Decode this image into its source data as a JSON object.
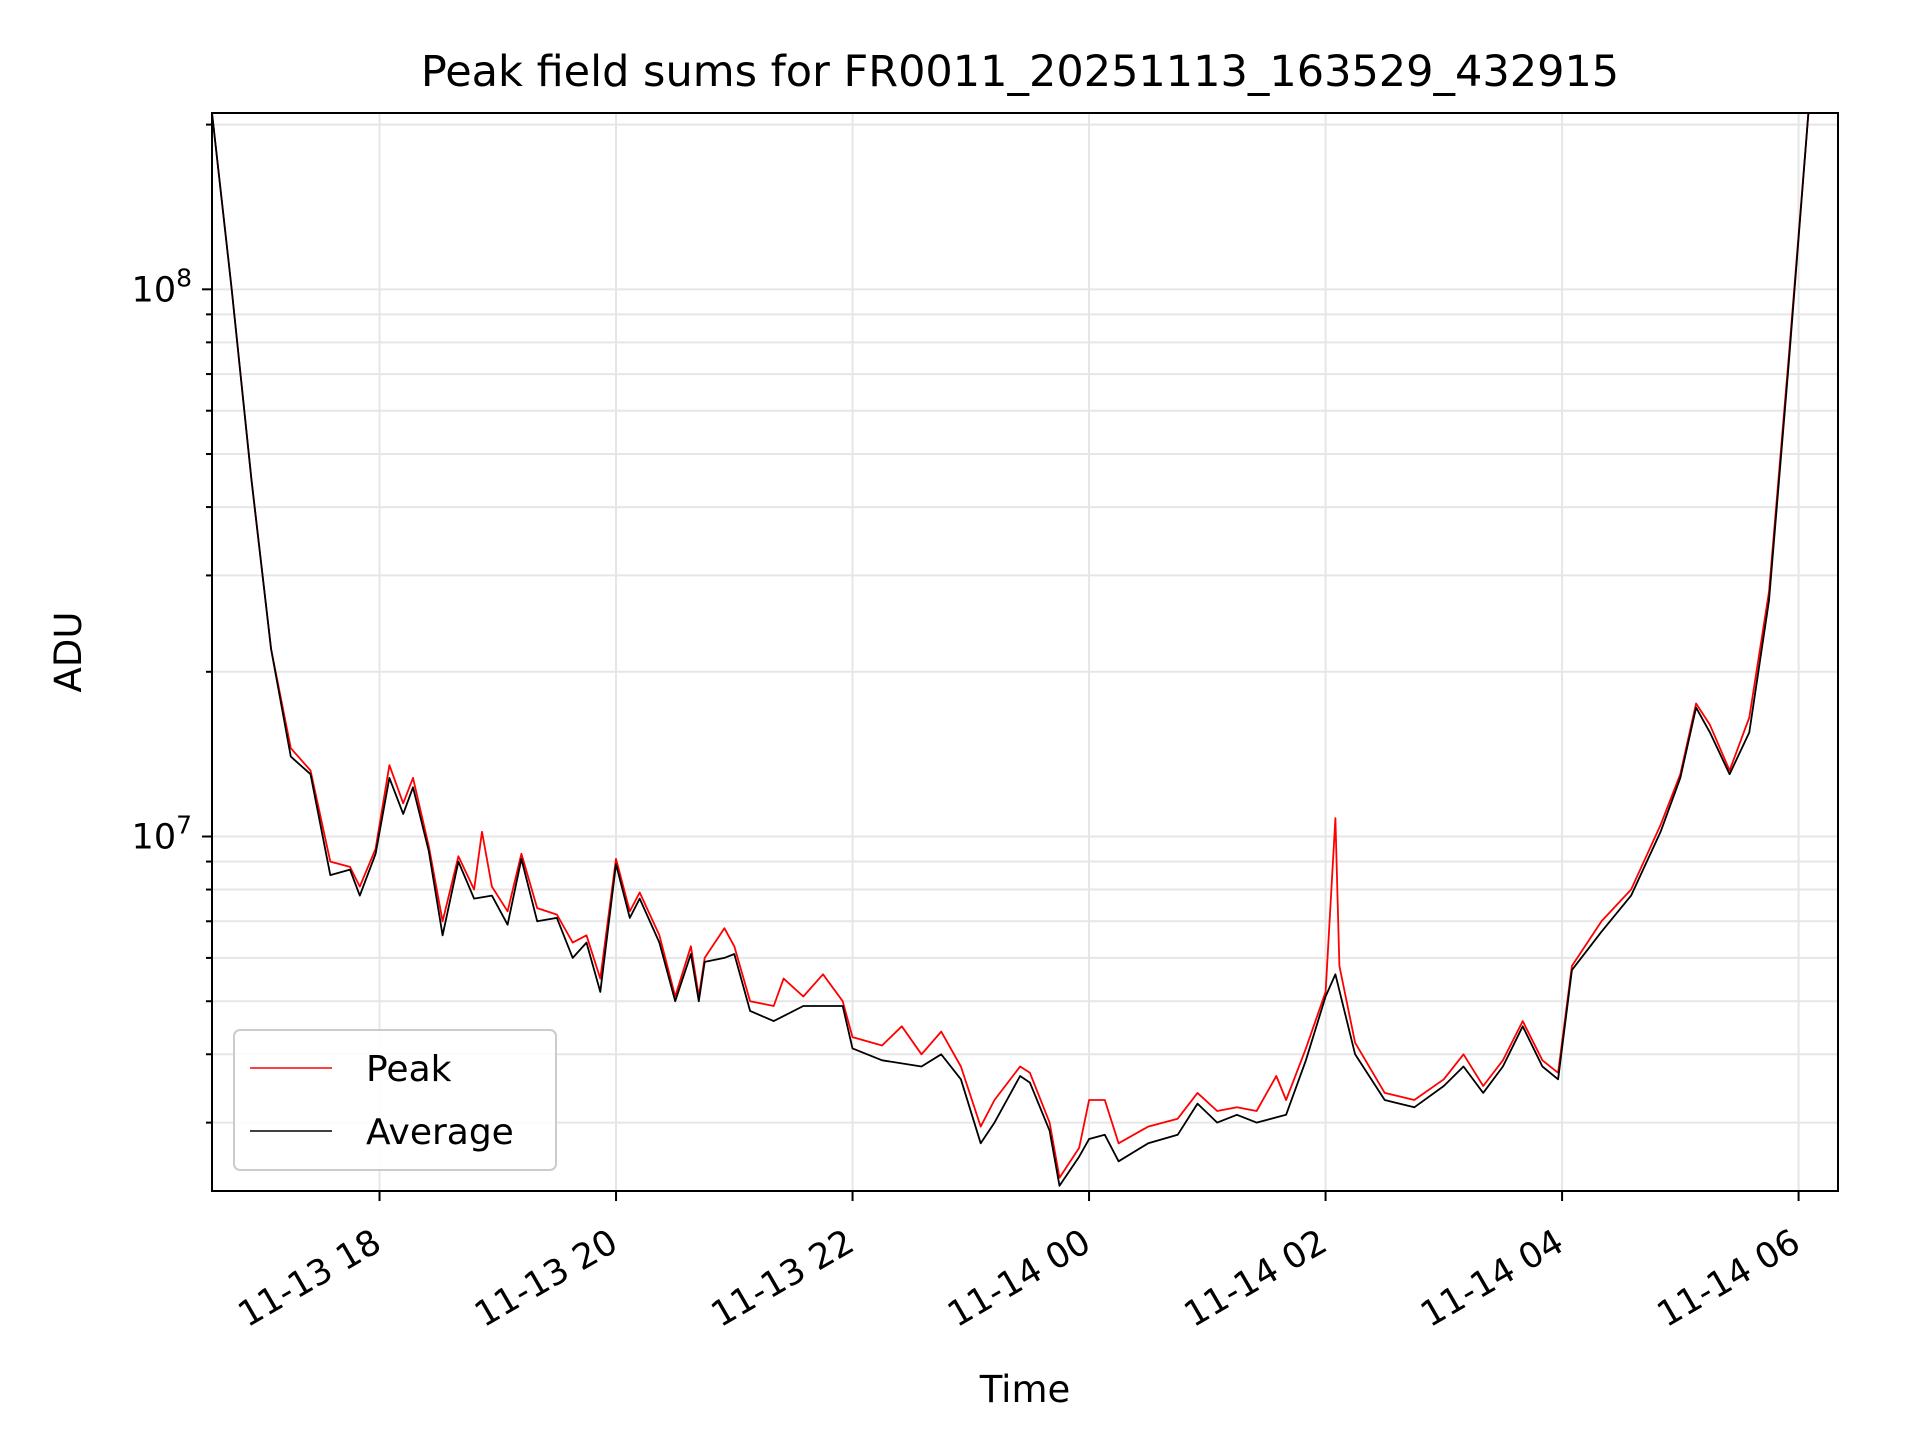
{
  "chart_data": {
    "type": "line",
    "title": "Peak field sums for FR0011_20251113_163529_432915",
    "xlabel": "Time",
    "ylabel": "ADU",
    "yscale": "log",
    "ylim": [
      2250000,
      210000000
    ],
    "xlim": [
      "2025-11-13 16:35",
      "2025-11-14 06:20"
    ],
    "grid": true,
    "legend_position": "lower-left",
    "x_ticks": [
      "2025-11-13 18:00",
      "2025-11-13 20:00",
      "2025-11-13 22:00",
      "2025-11-14 00:00",
      "2025-11-14 02:00",
      "2025-11-14 04:00",
      "2025-11-14 06:00"
    ],
    "x_tick_labels": [
      "11-13 18",
      "11-13 20",
      "11-13 22",
      "11-14 00",
      "11-14 02",
      "11-14 04",
      "11-14 06"
    ],
    "y_major_ticks": [
      10000000,
      100000000
    ],
    "y_tick_labels": [
      {
        "base": "10",
        "exp": "7"
      },
      {
        "base": "10",
        "exp": "8"
      }
    ],
    "colors": {
      "peak": "#ff0000",
      "average": "#000000",
      "grid": "#e6e6e6"
    },
    "series": [
      {
        "name": "Peak",
        "color": "#ff0000",
        "points": [
          [
            "2025-11-13 16:35",
            210000000
          ],
          [
            "2025-11-13 16:45",
            100000000
          ],
          [
            "2025-11-13 16:55",
            45000000
          ],
          [
            "2025-11-13 17:05",
            22000000
          ],
          [
            "2025-11-13 17:15",
            14500000
          ],
          [
            "2025-11-13 17:25",
            13200000
          ],
          [
            "2025-11-13 17:35",
            9000000
          ],
          [
            "2025-11-13 17:45",
            8800000
          ],
          [
            "2025-11-13 17:50",
            8100000
          ],
          [
            "2025-11-13 17:58",
            9500000
          ],
          [
            "2025-11-13 18:05",
            13500000
          ],
          [
            "2025-11-13 18:12",
            11500000
          ],
          [
            "2025-11-13 18:17",
            12800000
          ],
          [
            "2025-11-13 18:25",
            9600000
          ],
          [
            "2025-11-13 18:32",
            7000000
          ],
          [
            "2025-11-13 18:40",
            9200000
          ],
          [
            "2025-11-13 18:48",
            8000000
          ],
          [
            "2025-11-13 18:52",
            10200000
          ],
          [
            "2025-11-13 18:57",
            8100000
          ],
          [
            "2025-11-13 19:05",
            7300000
          ],
          [
            "2025-11-13 19:12",
            9300000
          ],
          [
            "2025-11-13 19:20",
            7400000
          ],
          [
            "2025-11-13 19:30",
            7200000
          ],
          [
            "2025-11-13 19:38",
            6400000
          ],
          [
            "2025-11-13 19:45",
            6600000
          ],
          [
            "2025-11-13 19:52",
            5500000
          ],
          [
            "2025-11-13 20:00",
            9100000
          ],
          [
            "2025-11-13 20:07",
            7300000
          ],
          [
            "2025-11-13 20:12",
            7900000
          ],
          [
            "2025-11-13 20:22",
            6600000
          ],
          [
            "2025-11-13 20:30",
            5100000
          ],
          [
            "2025-11-13 20:38",
            6300000
          ],
          [
            "2025-11-13 20:42",
            5100000
          ],
          [
            "2025-11-13 20:45",
            6000000
          ],
          [
            "2025-11-13 20:55",
            6800000
          ],
          [
            "2025-11-13 21:00",
            6300000
          ],
          [
            "2025-11-13 21:08",
            5000000
          ],
          [
            "2025-11-13 21:20",
            4900000
          ],
          [
            "2025-11-13 21:25",
            5500000
          ],
          [
            "2025-11-13 21:35",
            5100000
          ],
          [
            "2025-11-13 21:45",
            5600000
          ],
          [
            "2025-11-13 21:55",
            5000000
          ],
          [
            "2025-11-13 22:00",
            4300000
          ],
          [
            "2025-11-13 22:15",
            4150000
          ],
          [
            "2025-11-13 22:25",
            4500000
          ],
          [
            "2025-11-13 22:35",
            4000000
          ],
          [
            "2025-11-13 22:45",
            4400000
          ],
          [
            "2025-11-13 22:55",
            3800000
          ],
          [
            "2025-11-13 23:05",
            2950000
          ],
          [
            "2025-11-13 23:12",
            3300000
          ],
          [
            "2025-11-13 23:25",
            3800000
          ],
          [
            "2025-11-13 23:30",
            3700000
          ],
          [
            "2025-11-13 23:40",
            3000000
          ],
          [
            "2025-11-13 23:45",
            2380000
          ],
          [
            "2025-11-13 23:55",
            2700000
          ],
          [
            "2025-11-14 00:00",
            3300000
          ],
          [
            "2025-11-14 00:08",
            3300000
          ],
          [
            "2025-11-14 00:15",
            2750000
          ],
          [
            "2025-11-14 00:30",
            2950000
          ],
          [
            "2025-11-14 00:45",
            3050000
          ],
          [
            "2025-11-14 00:55",
            3400000
          ],
          [
            "2025-11-14 01:05",
            3150000
          ],
          [
            "2025-11-14 01:15",
            3200000
          ],
          [
            "2025-11-14 01:25",
            3150000
          ],
          [
            "2025-11-14 01:35",
            3650000
          ],
          [
            "2025-11-14 01:40",
            3300000
          ],
          [
            "2025-11-14 01:50",
            4100000
          ],
          [
            "2025-11-14 02:00",
            5200000
          ],
          [
            "2025-11-14 02:05",
            10800000
          ],
          [
            "2025-11-14 02:07",
            5800000
          ],
          [
            "2025-11-14 02:15",
            4200000
          ],
          [
            "2025-11-14 02:30",
            3400000
          ],
          [
            "2025-11-14 02:45",
            3300000
          ],
          [
            "2025-11-14 03:00",
            3600000
          ],
          [
            "2025-11-14 03:10",
            4000000
          ],
          [
            "2025-11-14 03:20",
            3500000
          ],
          [
            "2025-11-14 03:30",
            3900000
          ],
          [
            "2025-11-14 03:40",
            4600000
          ],
          [
            "2025-11-14 03:50",
            3900000
          ],
          [
            "2025-11-14 03:58",
            3700000
          ],
          [
            "2025-11-14 04:05",
            5800000
          ],
          [
            "2025-11-14 04:20",
            7000000
          ],
          [
            "2025-11-14 04:35",
            8000000
          ],
          [
            "2025-11-14 04:50",
            10500000
          ],
          [
            "2025-11-14 05:00",
            13000000
          ],
          [
            "2025-11-14 05:08",
            17500000
          ],
          [
            "2025-11-14 05:15",
            16000000
          ],
          [
            "2025-11-14 05:25",
            13200000
          ],
          [
            "2025-11-14 05:35",
            16500000
          ],
          [
            "2025-11-14 05:45",
            28000000
          ],
          [
            "2025-11-14 05:55",
            75000000
          ],
          [
            "2025-11-14 06:05",
            210000000
          ]
        ]
      },
      {
        "name": "Average",
        "color": "#000000",
        "points": [
          [
            "2025-11-13 16:35",
            210000000
          ],
          [
            "2025-11-13 16:45",
            100000000
          ],
          [
            "2025-11-13 16:55",
            45000000
          ],
          [
            "2025-11-13 17:05",
            22000000
          ],
          [
            "2025-11-13 17:15",
            14000000
          ],
          [
            "2025-11-13 17:25",
            13000000
          ],
          [
            "2025-11-13 17:35",
            8500000
          ],
          [
            "2025-11-13 17:45",
            8700000
          ],
          [
            "2025-11-13 17:50",
            7800000
          ],
          [
            "2025-11-13 17:58",
            9300000
          ],
          [
            "2025-11-13 18:05",
            12800000
          ],
          [
            "2025-11-13 18:12",
            11000000
          ],
          [
            "2025-11-13 18:17",
            12300000
          ],
          [
            "2025-11-13 18:25",
            9400000
          ],
          [
            "2025-11-13 18:32",
            6600000
          ],
          [
            "2025-11-13 18:40",
            9000000
          ],
          [
            "2025-11-13 18:48",
            7700000
          ],
          [
            "2025-11-13 18:57",
            7800000
          ],
          [
            "2025-11-13 19:05",
            6900000
          ],
          [
            "2025-11-13 19:12",
            9100000
          ],
          [
            "2025-11-13 19:20",
            7000000
          ],
          [
            "2025-11-13 19:30",
            7100000
          ],
          [
            "2025-11-13 19:38",
            6000000
          ],
          [
            "2025-11-13 19:45",
            6400000
          ],
          [
            "2025-11-13 19:52",
            5200000
          ],
          [
            "2025-11-13 20:00",
            8900000
          ],
          [
            "2025-11-13 20:07",
            7100000
          ],
          [
            "2025-11-13 20:12",
            7700000
          ],
          [
            "2025-11-13 20:22",
            6400000
          ],
          [
            "2025-11-13 20:30",
            5000000
          ],
          [
            "2025-11-13 20:38",
            6100000
          ],
          [
            "2025-11-13 20:42",
            5000000
          ],
          [
            "2025-11-13 20:45",
            5900000
          ],
          [
            "2025-11-13 20:55",
            6000000
          ],
          [
            "2025-11-13 21:00",
            6100000
          ],
          [
            "2025-11-13 21:08",
            4800000
          ],
          [
            "2025-11-13 21:20",
            4600000
          ],
          [
            "2025-11-13 21:35",
            4900000
          ],
          [
            "2025-11-13 21:55",
            4900000
          ],
          [
            "2025-11-13 22:00",
            4100000
          ],
          [
            "2025-11-13 22:15",
            3900000
          ],
          [
            "2025-11-13 22:35",
            3800000
          ],
          [
            "2025-11-13 22:45",
            4000000
          ],
          [
            "2025-11-13 22:55",
            3600000
          ],
          [
            "2025-11-13 23:05",
            2750000
          ],
          [
            "2025-11-13 23:12",
            3000000
          ],
          [
            "2025-11-13 23:25",
            3650000
          ],
          [
            "2025-11-13 23:30",
            3550000
          ],
          [
            "2025-11-13 23:40",
            2900000
          ],
          [
            "2025-11-13 23:45",
            2300000
          ],
          [
            "2025-11-13 23:55",
            2600000
          ],
          [
            "2025-11-14 00:00",
            2800000
          ],
          [
            "2025-11-14 00:08",
            2850000
          ],
          [
            "2025-11-14 00:15",
            2550000
          ],
          [
            "2025-11-14 00:30",
            2750000
          ],
          [
            "2025-11-14 00:45",
            2850000
          ],
          [
            "2025-11-14 00:55",
            3250000
          ],
          [
            "2025-11-14 01:05",
            3000000
          ],
          [
            "2025-11-14 01:15",
            3100000
          ],
          [
            "2025-11-14 01:25",
            3000000
          ],
          [
            "2025-11-14 01:40",
            3100000
          ],
          [
            "2025-11-14 01:50",
            3900000
          ],
          [
            "2025-11-14 02:00",
            5100000
          ],
          [
            "2025-11-14 02:05",
            5600000
          ],
          [
            "2025-11-14 02:15",
            4000000
          ],
          [
            "2025-11-14 02:30",
            3300000
          ],
          [
            "2025-11-14 02:45",
            3200000
          ],
          [
            "2025-11-14 03:00",
            3500000
          ],
          [
            "2025-11-14 03:10",
            3800000
          ],
          [
            "2025-11-14 03:20",
            3400000
          ],
          [
            "2025-11-14 03:30",
            3800000
          ],
          [
            "2025-11-14 03:40",
            4500000
          ],
          [
            "2025-11-14 03:50",
            3800000
          ],
          [
            "2025-11-14 03:58",
            3600000
          ],
          [
            "2025-11-14 04:05",
            5700000
          ],
          [
            "2025-11-14 04:20",
            6700000
          ],
          [
            "2025-11-14 04:35",
            7800000
          ],
          [
            "2025-11-14 04:50",
            10200000
          ],
          [
            "2025-11-14 05:00",
            12800000
          ],
          [
            "2025-11-14 05:08",
            17200000
          ],
          [
            "2025-11-14 05:15",
            15500000
          ],
          [
            "2025-11-14 05:25",
            13000000
          ],
          [
            "2025-11-14 05:35",
            15500000
          ],
          [
            "2025-11-14 05:45",
            27000000
          ],
          [
            "2025-11-14 05:55",
            73000000
          ],
          [
            "2025-11-14 06:05",
            210000000
          ]
        ]
      }
    ]
  }
}
